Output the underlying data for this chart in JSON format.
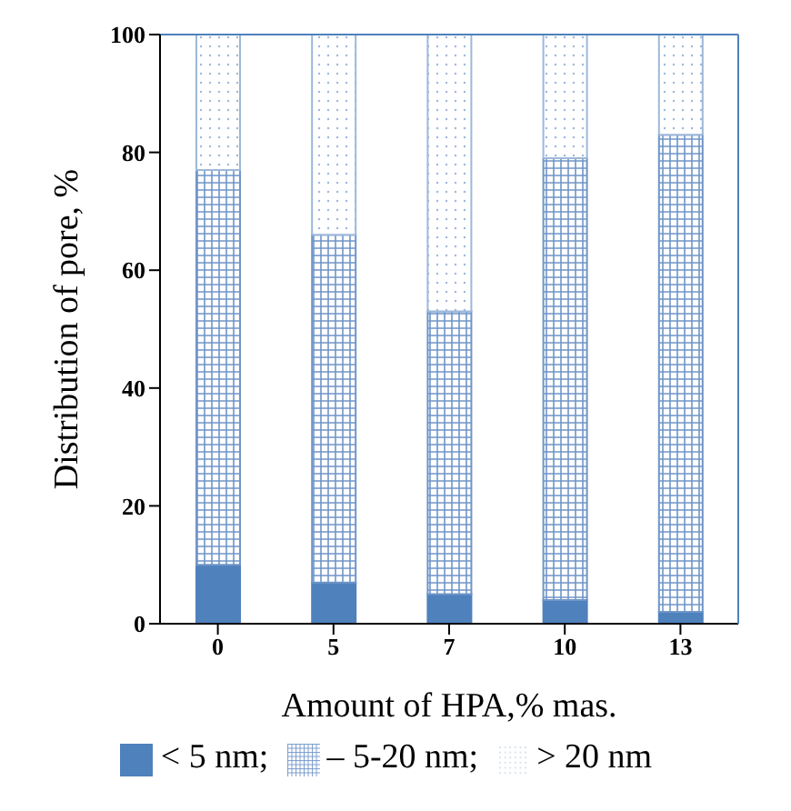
{
  "chart_data": {
    "type": "bar",
    "stacked": true,
    "xlabel": "Amount of HPA,% mas.",
    "ylabel": "Distribution of pore, %",
    "categories": [
      "0",
      "5",
      "7",
      "10",
      "13"
    ],
    "series": [
      {
        "name": "< 5 nm;",
        "color": "#4f81bd",
        "values": [
          10,
          7,
          5,
          4,
          2
        ]
      },
      {
        "name": "– 5-20 nm;",
        "color": "#6f95c8",
        "values": [
          67,
          59,
          48,
          75,
          81
        ]
      },
      {
        "name": "> 20 nm",
        "color": "#9db8d9",
        "values": [
          23,
          34,
          47,
          21,
          17
        ]
      }
    ],
    "ylim": [
      0,
      100
    ],
    "yticks": [
      0,
      20,
      40,
      60,
      80,
      100
    ],
    "legend": "bottom"
  }
}
